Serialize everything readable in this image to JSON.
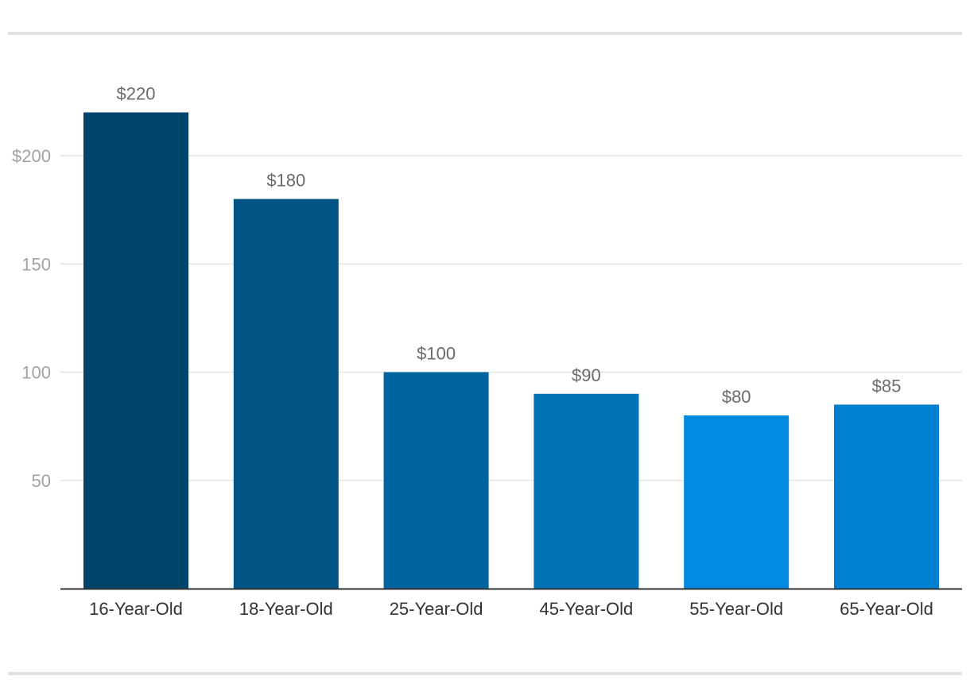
{
  "chart_data": {
    "type": "bar",
    "categories": [
      "16-Year-Old",
      "18-Year-Old",
      "25-Year-Old",
      "45-Year-Old",
      "55-Year-Old",
      "65-Year-Old"
    ],
    "values": [
      220,
      180,
      100,
      90,
      80,
      85
    ],
    "data_labels": [
      "$220",
      "$180",
      "$100",
      "$90",
      "$80",
      "$85"
    ],
    "bar_colors": [
      "#00446b",
      "#005486",
      "#00649f",
      "#0072b5",
      "#008ae0",
      "#007fd0"
    ],
    "y_ticks": [
      50,
      100,
      150,
      200
    ],
    "y_tick_labels": [
      "50",
      "100",
      "150",
      "200"
    ],
    "y_tick_prefix_top": "$",
    "ylim": [
      0,
      230
    ],
    "grid": true,
    "gridline_color": "#e4e4e4",
    "axis_color": "#333333",
    "title": "",
    "xlabel": "",
    "ylabel": ""
  }
}
